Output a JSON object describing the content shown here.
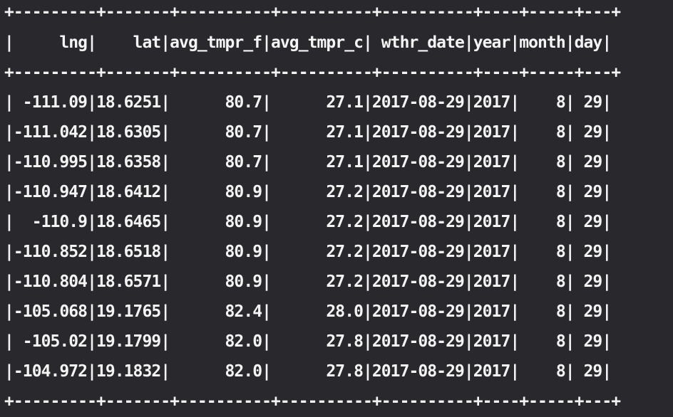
{
  "terminal": {
    "border": "+---------+-------+----------+----------+----------+----+-----+---+",
    "header": "|     lng|    lat|avg_tmpr_f|avg_tmpr_c| wthr_date|year|month|day|",
    "rows": [
      "| -111.09|18.6251|      80.7|      27.1|2017-08-29|2017|    8| 29|",
      "|-111.042|18.6305|      80.7|      27.1|2017-08-29|2017|    8| 29|",
      "|-110.995|18.6358|      80.7|      27.1|2017-08-29|2017|    8| 29|",
      "|-110.947|18.6412|      80.9|      27.2|2017-08-29|2017|    8| 29|",
      "|  -110.9|18.6465|      80.9|      27.2|2017-08-29|2017|    8| 29|",
      "|-110.852|18.6518|      80.9|      27.2|2017-08-29|2017|    8| 29|",
      "|-110.804|18.6571|      80.9|      27.2|2017-08-29|2017|    8| 29|",
      "|-105.068|19.1765|      82.4|      28.0|2017-08-29|2017|    8| 29|",
      "| -105.02|19.1799|      82.0|      27.8|2017-08-29|2017|    8| 29|",
      "|-104.972|19.1832|      82.0|      27.8|2017-08-29|2017|    8| 29|"
    ]
  }
}
